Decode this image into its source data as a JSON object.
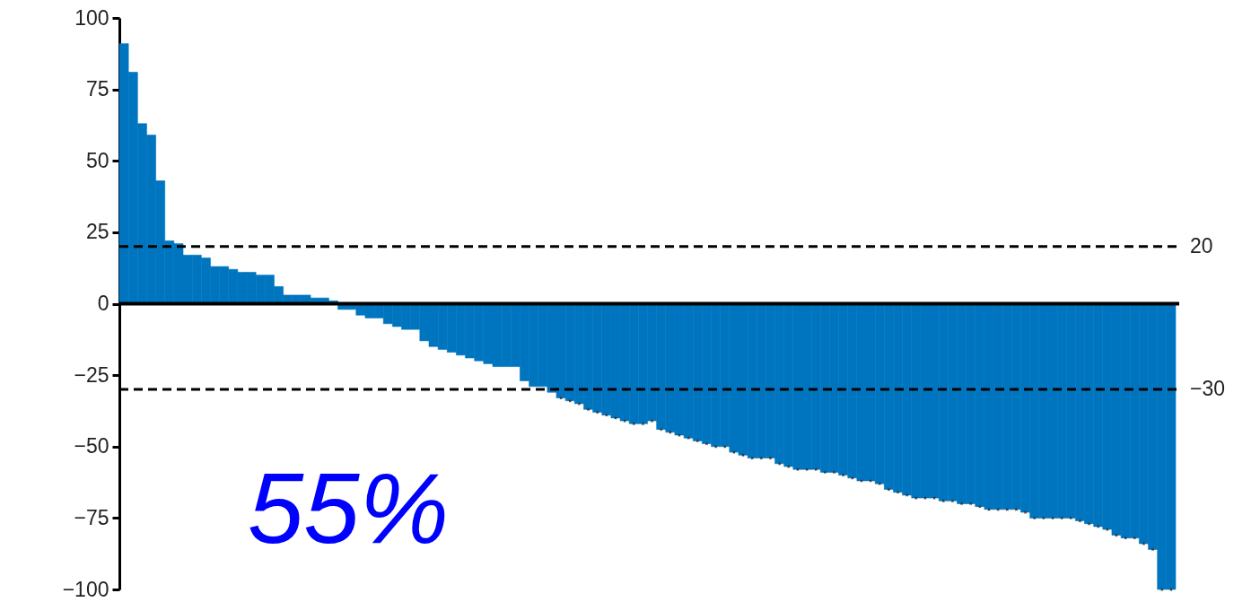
{
  "chart_data": {
    "type": "bar",
    "categories": [
      null,
      null,
      null,
      null,
      null,
      null,
      null,
      null,
      null,
      null,
      null,
      null,
      null,
      null,
      null,
      null,
      null,
      null,
      null,
      null,
      null,
      null,
      null,
      null,
      null,
      null,
      null,
      null,
      null,
      null,
      null,
      null,
      null,
      null,
      null,
      null,
      null,
      null,
      null,
      null,
      null,
      null,
      null,
      null,
      null,
      null,
      null,
      null,
      null,
      null,
      null,
      null,
      null,
      null,
      null,
      null,
      null,
      null,
      null,
      null,
      null,
      null,
      null,
      null,
      null,
      null,
      null,
      null,
      null,
      null,
      null,
      null,
      null,
      null,
      null,
      null,
      null,
      null,
      null,
      null,
      null,
      null,
      null,
      null,
      null,
      null,
      null,
      null,
      null,
      null,
      null,
      null,
      null,
      null,
      null,
      null,
      null,
      null,
      null,
      null,
      null,
      null,
      null,
      null,
      null,
      null,
      null,
      null,
      null,
      null,
      null,
      null,
      null,
      null,
      null,
      null
    ],
    "series": [
      {
        "color": "#0075bf",
        "values": [
          91,
          81,
          63,
          59,
          43,
          22,
          21,
          17,
          17,
          16,
          13,
          13,
          12,
          11,
          11,
          10,
          10,
          6,
          3,
          3,
          3,
          2,
          2,
          1,
          -2,
          -2,
          -4,
          -5,
          -5,
          -7,
          -8,
          -9,
          -9,
          -13,
          -15,
          -16,
          -17,
          -18,
          -19,
          -20,
          -21,
          -22,
          -22,
          -22,
          -27,
          -29,
          -29,
          -31,
          -33,
          -34,
          -35,
          -37,
          -38,
          -39,
          -40,
          -41,
          -42,
          -42,
          -41,
          -44,
          -45,
          -46,
          -47,
          -48,
          -49,
          -50,
          -50,
          -52,
          -53,
          -54,
          -54,
          -54,
          -56,
          -57,
          -58,
          -58,
          -58,
          -59,
          -59,
          -60,
          -61,
          -62,
          -62,
          -63,
          -65,
          -66,
          -67,
          -68,
          -68,
          -68,
          -69,
          -69,
          -70,
          -70,
          -71,
          -72,
          -72,
          -72,
          -72,
          -73,
          -75,
          -75,
          -75,
          -75,
          -75,
          -76,
          -77,
          -78,
          -79,
          -81,
          -82,
          -82,
          -84,
          -86,
          -100,
          -100
        ]
      },
      {
        "type": "scatter",
        "color": "#333333",
        "values": [
          null,
          null,
          null,
          null,
          null,
          null,
          null,
          null,
          null,
          null,
          null,
          null,
          null,
          null,
          null,
          null,
          null,
          null,
          null,
          null,
          null,
          null,
          null,
          null,
          null,
          null,
          null,
          null,
          null,
          null,
          null,
          null,
          null,
          null,
          null,
          null,
          null,
          null,
          null,
          null,
          null,
          null,
          null,
          null,
          null,
          null,
          null,
          null,
          -33,
          -34,
          -35,
          -37,
          -38,
          -39,
          -40,
          -41,
          -42,
          -42,
          -41,
          -44,
          -45,
          -46,
          -47,
          -48,
          -49,
          -50,
          -50,
          -52,
          -53,
          -54,
          -54,
          -54,
          -56,
          -57,
          -58,
          -58,
          -58,
          -59,
          -59,
          -60,
          -61,
          -62,
          -62,
          -63,
          -65,
          -66,
          -67,
          -68,
          -68,
          -68,
          -69,
          -69,
          -70,
          -70,
          -71,
          -72,
          -72,
          -72,
          -72,
          -73,
          -75,
          -75,
          -75,
          -75,
          -75,
          -76,
          -77,
          -78,
          -79,
          -81,
          -82,
          -82,
          -84,
          -86,
          -100,
          -100
        ]
      }
    ],
    "marker": "star",
    "ylim": [
      -100,
      100
    ],
    "yticks": [
      {
        "value": -100,
        "label": "−100"
      },
      {
        "value": -75,
        "label": "−75"
      },
      {
        "value": -50,
        "label": "−50"
      },
      {
        "value": -25,
        "label": "−25"
      },
      0,
      25,
      50,
      75,
      100
    ],
    "ref_lines": [
      {
        "axis": "y",
        "value": 20,
        "label": "20",
        "line_style": "dashed"
      },
      {
        "axis": "y",
        "value": -30,
        "label": "−30",
        "line_style": "dashed"
      }
    ],
    "annotations": [
      "55%"
    ]
  }
}
